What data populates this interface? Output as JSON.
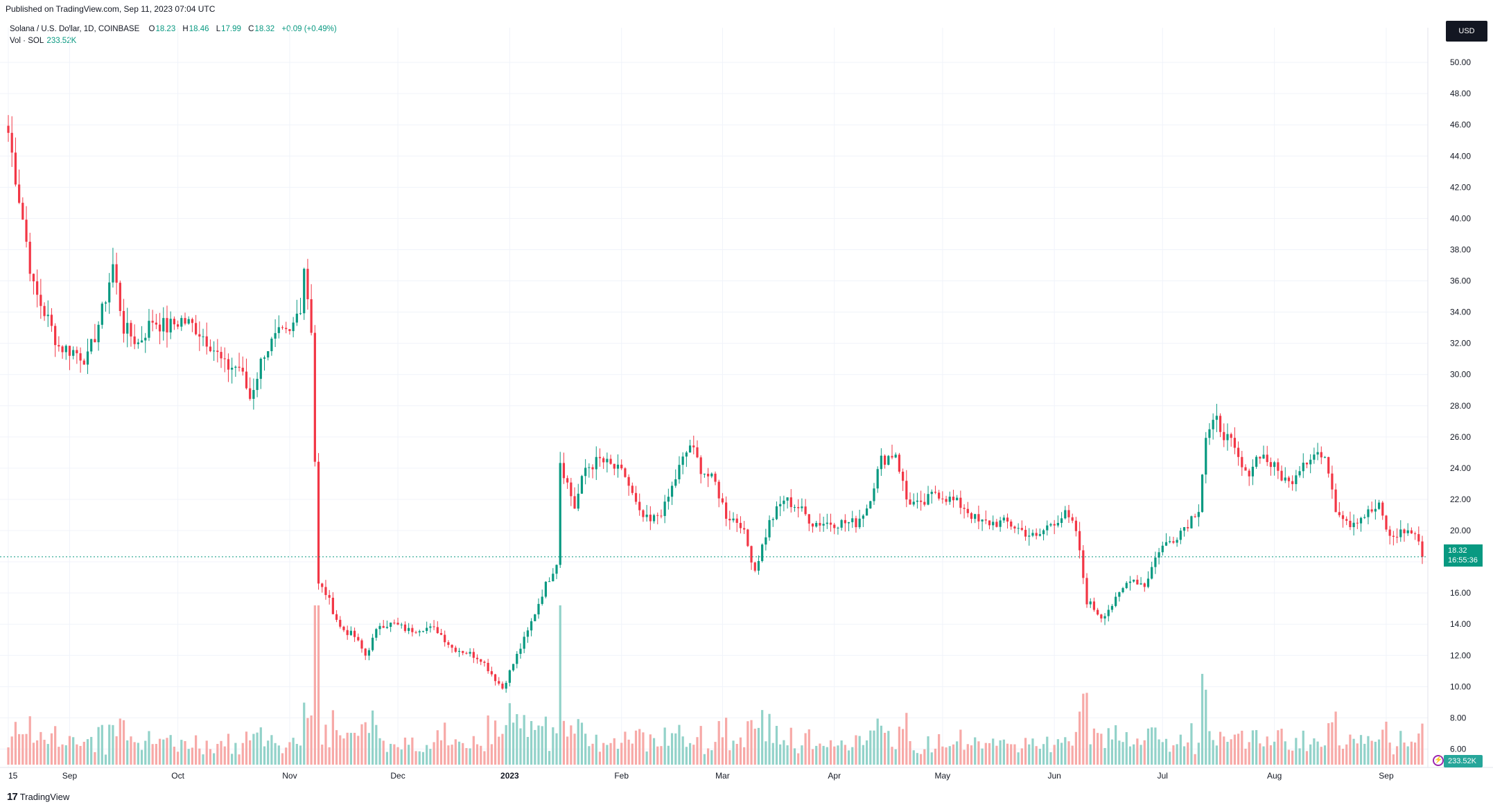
{
  "published": "Published on TradingView.com, Sep 11, 2023 07:04 UTC",
  "legend": {
    "symbol": "Solana / U.S. Dollar, 1D, COINBASE",
    "open_label": "O",
    "open": "18.23",
    "high_label": "H",
    "high": "18.46",
    "low_label": "L",
    "low": "17.99",
    "close_label": "C",
    "close": "18.32",
    "change": "+0.09 (+0.49%)",
    "volume_label": "Vol · SOL",
    "volume": "233.52K"
  },
  "currency": "USD",
  "price_tag": {
    "price": "18.32",
    "countdown": "16:55:36"
  },
  "volume_tag": "233.52K",
  "footer_brand": "TradingView",
  "colors": {
    "up": "#089981",
    "down": "#f23645",
    "up_vol": "#92d2c9",
    "down_vol": "#f7a9a7",
    "grid": "#f0f3fa"
  },
  "chart_data": {
    "type": "candlestick",
    "series": [
      {
        "name": "Solana / U.S. Dollar"
      }
    ],
    "yticks": [
      "6.00",
      "8.00",
      "10.00",
      "12.00",
      "14.00",
      "16.00",
      "18.00",
      "20.00",
      "22.00",
      "24.00",
      "26.00",
      "28.00",
      "30.00",
      "32.00",
      "34.00",
      "36.00",
      "38.00",
      "40.00",
      "42.00",
      "44.00",
      "46.00",
      "48.00",
      "50.00"
    ],
    "xticks": [
      "15",
      "Sep",
      "Oct",
      "Nov",
      "Dec",
      "2023",
      "Feb",
      "Mar",
      "Apr",
      "May",
      "Jun",
      "Jul",
      "Aug",
      "Sep"
    ],
    "x_start": "2022-08-15",
    "x_end": "2023-09-11",
    "ylim": [
      5,
      52
    ],
    "close_points": [
      [
        "2022-08-15",
        45.5
      ],
      [
        "2022-08-19",
        40.0
      ],
      [
        "2022-08-22",
        35.5
      ],
      [
        "2022-08-26",
        33.5
      ],
      [
        "2022-08-29",
        31.8
      ],
      [
        "2022-09-02",
        31.5
      ],
      [
        "2022-09-06",
        31.0
      ],
      [
        "2022-09-10",
        34.0
      ],
      [
        "2022-09-13",
        37.0
      ],
      [
        "2022-09-16",
        33.0
      ],
      [
        "2022-09-20",
        32.0
      ],
      [
        "2022-09-24",
        33.5
      ],
      [
        "2022-09-28",
        33.0
      ],
      [
        "2022-10-02",
        33.5
      ],
      [
        "2022-10-06",
        33.0
      ],
      [
        "2022-10-10",
        32.0
      ],
      [
        "2022-10-14",
        30.5
      ],
      [
        "2022-10-18",
        30.5
      ],
      [
        "2022-10-21",
        28.5
      ],
      [
        "2022-10-25",
        31.5
      ],
      [
        "2022-10-29",
        32.5
      ],
      [
        "2022-11-01",
        32.5
      ],
      [
        "2022-11-04",
        34.5
      ],
      [
        "2022-11-05",
        37.0
      ],
      [
        "2022-11-07",
        33.0
      ],
      [
        "2022-11-08",
        24.5
      ],
      [
        "2022-11-09",
        16.5
      ],
      [
        "2022-11-11",
        16.0
      ],
      [
        "2022-11-15",
        13.8
      ],
      [
        "2022-11-19",
        13.2
      ],
      [
        "2022-11-22",
        12.0
      ],
      [
        "2022-11-26",
        14.0
      ],
      [
        "2022-11-30",
        14.0
      ],
      [
        "2022-12-04",
        13.6
      ],
      [
        "2022-12-08",
        13.8
      ],
      [
        "2022-12-12",
        13.6
      ],
      [
        "2022-12-16",
        12.5
      ],
      [
        "2022-12-20",
        12.2
      ],
      [
        "2022-12-24",
        11.8
      ],
      [
        "2022-12-28",
        10.5
      ],
      [
        "2022-12-30",
        9.9
      ],
      [
        "2023-01-03",
        12.0
      ],
      [
        "2023-01-06",
        13.5
      ],
      [
        "2023-01-10",
        16.0
      ],
      [
        "2023-01-14",
        18.0
      ],
      [
        "2023-01-15",
        24.5
      ],
      [
        "2023-01-19",
        21.5
      ],
      [
        "2023-01-22",
        24.0
      ],
      [
        "2023-01-26",
        24.5
      ],
      [
        "2023-01-30",
        24.0
      ],
      [
        "2023-02-02",
        23.5
      ],
      [
        "2023-02-06",
        21.0
      ],
      [
        "2023-02-09",
        20.5
      ],
      [
        "2023-02-13",
        21.5
      ],
      [
        "2023-02-17",
        24.0
      ],
      [
        "2023-02-20",
        25.5
      ],
      [
        "2023-02-23",
        24.0
      ],
      [
        "2023-02-27",
        23.0
      ],
      [
        "2023-03-02",
        21.0
      ],
      [
        "2023-03-06",
        20.5
      ],
      [
        "2023-03-10",
        17.5
      ],
      [
        "2023-03-14",
        20.5
      ],
      [
        "2023-03-18",
        22.0
      ],
      [
        "2023-03-22",
        21.5
      ],
      [
        "2023-03-26",
        20.5
      ],
      [
        "2023-03-30",
        20.5
      ],
      [
        "2023-04-03",
        20.5
      ],
      [
        "2023-04-07",
        20.5
      ],
      [
        "2023-04-10",
        21.5
      ],
      [
        "2023-04-14",
        24.5
      ],
      [
        "2023-04-18",
        25.0
      ],
      [
        "2023-04-21",
        22.0
      ],
      [
        "2023-04-25",
        21.5
      ],
      [
        "2023-04-29",
        22.5
      ],
      [
        "2023-05-03",
        22.0
      ],
      [
        "2023-05-07",
        21.5
      ],
      [
        "2023-05-11",
        20.5
      ],
      [
        "2023-05-15",
        20.5
      ],
      [
        "2023-05-19",
        20.5
      ],
      [
        "2023-05-23",
        20.0
      ],
      [
        "2023-05-27",
        19.5
      ],
      [
        "2023-05-31",
        20.5
      ],
      [
        "2023-06-04",
        21.0
      ],
      [
        "2023-06-07",
        20.0
      ],
      [
        "2023-06-10",
        15.5
      ],
      [
        "2023-06-14",
        14.5
      ],
      [
        "2023-06-18",
        15.5
      ],
      [
        "2023-06-22",
        17.0
      ],
      [
        "2023-06-26",
        16.5
      ],
      [
        "2023-06-30",
        18.8
      ],
      [
        "2023-07-04",
        19.5
      ],
      [
        "2023-07-08",
        20.5
      ],
      [
        "2023-07-11",
        21.5
      ],
      [
        "2023-07-13",
        26.0
      ],
      [
        "2023-07-16",
        27.0
      ],
      [
        "2023-07-20",
        25.5
      ],
      [
        "2023-07-24",
        23.5
      ],
      [
        "2023-07-28",
        25.0
      ],
      [
        "2023-08-01",
        24.0
      ],
      [
        "2023-08-05",
        23.0
      ],
      [
        "2023-08-09",
        24.5
      ],
      [
        "2023-08-13",
        25.0
      ],
      [
        "2023-08-16",
        24.0
      ],
      [
        "2023-08-18",
        21.5
      ],
      [
        "2023-08-22",
        20.5
      ],
      [
        "2023-08-26",
        21.0
      ],
      [
        "2023-08-30",
        21.5
      ],
      [
        "2023-09-02",
        19.5
      ],
      [
        "2023-09-06",
        20.0
      ],
      [
        "2023-09-09",
        19.8
      ],
      [
        "2023-09-11",
        18.32
      ]
    ],
    "last_price": 18.32
  }
}
